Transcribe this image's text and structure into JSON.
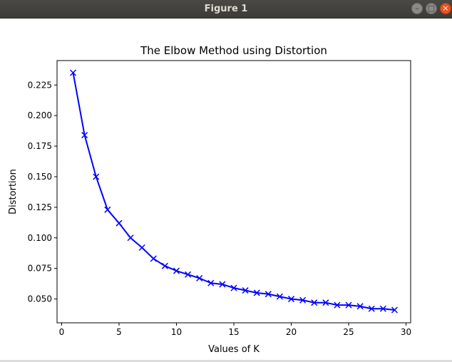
{
  "window": {
    "title": "Figure 1",
    "minimize_glyph": "–",
    "maximize_glyph": "□",
    "close_glyph": "×"
  },
  "chart_data": {
    "type": "line",
    "title": "The Elbow Method using Distortion",
    "xlabel": "Values of K",
    "ylabel": "Distortion",
    "xlim": [
      -0.4,
      30.4
    ],
    "ylim": [
      0.0305,
      0.245
    ],
    "xticks": [
      0,
      5,
      10,
      15,
      20,
      25,
      30
    ],
    "xtick_labels": [
      "0",
      "5",
      "10",
      "15",
      "20",
      "25",
      "30"
    ],
    "yticks": [
      0.05,
      0.075,
      0.1,
      0.125,
      0.15,
      0.175,
      0.2,
      0.225
    ],
    "ytick_labels": [
      "0.050",
      "0.075",
      "0.100",
      "0.125",
      "0.150",
      "0.175",
      "0.200",
      "0.225"
    ],
    "grid": false,
    "series": [
      {
        "color": "#0000ff",
        "marker": "x",
        "x": [
          1,
          2,
          3,
          4,
          5,
          6,
          7,
          8,
          9,
          10,
          11,
          12,
          13,
          14,
          15,
          16,
          17,
          18,
          19,
          20,
          21,
          22,
          23,
          24,
          25,
          26,
          27,
          28,
          29
        ],
        "y": [
          0.235,
          0.184,
          0.15,
          0.123,
          0.112,
          0.1,
          0.092,
          0.083,
          0.077,
          0.073,
          0.07,
          0.067,
          0.063,
          0.062,
          0.059,
          0.057,
          0.055,
          0.054,
          0.052,
          0.05,
          0.049,
          0.047,
          0.047,
          0.045,
          0.045,
          0.044,
          0.042,
          0.042,
          0.041
        ]
      }
    ]
  }
}
